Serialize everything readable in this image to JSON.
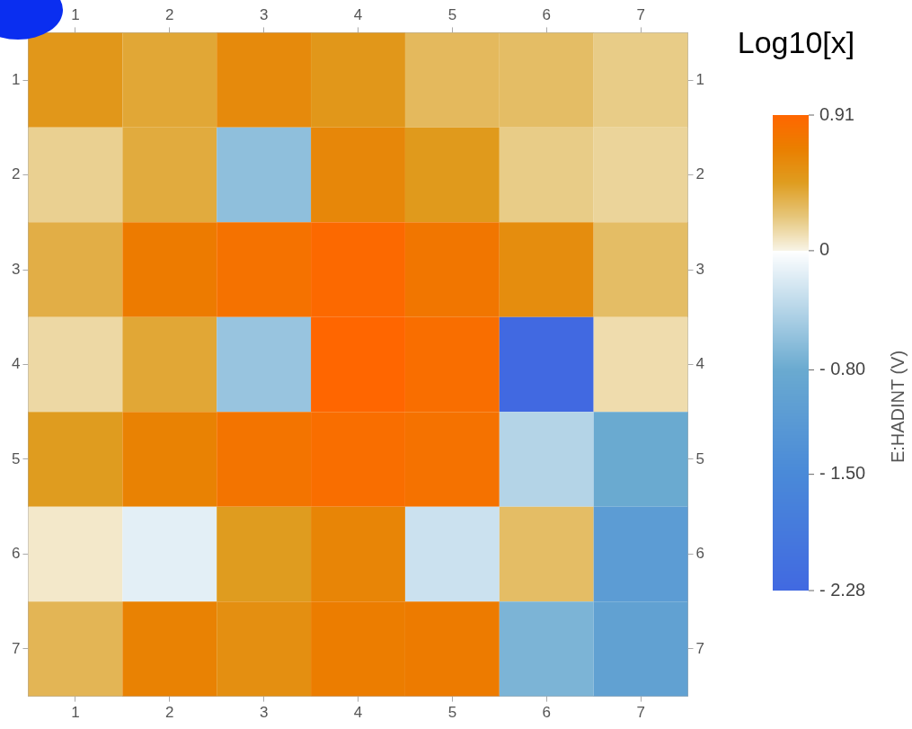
{
  "chart_data": {
    "type": "heatmap",
    "title": "Log10[x]",
    "clabel": "E:HADINT (V)",
    "categories": [
      "1",
      "2",
      "3",
      "4",
      "5",
      "6",
      "7"
    ],
    "y_categories": [
      "1",
      "2",
      "3",
      "4",
      "5",
      "6",
      "7"
    ],
    "cells": [
      [
        0.5,
        0.4,
        0.6,
        0.5,
        0.3,
        0.28,
        0.2
      ],
      [
        0.18,
        0.38,
        -0.6,
        0.62,
        0.48,
        0.2,
        0.16
      ],
      [
        0.36,
        0.72,
        0.8,
        0.88,
        0.76,
        0.58,
        0.28
      ],
      [
        0.14,
        0.4,
        -0.55,
        0.91,
        0.84,
        -2.28,
        0.12
      ],
      [
        0.46,
        0.66,
        0.78,
        0.84,
        0.8,
        -0.4,
        -0.8
      ],
      [
        0.06,
        -0.15,
        0.46,
        0.64,
        -0.28,
        0.28,
        -1.1
      ],
      [
        0.32,
        0.66,
        0.56,
        0.7,
        0.72,
        -0.7,
        -1.0
      ]
    ],
    "clim": [
      -2.28,
      0.91
    ],
    "cticks": [
      0.91,
      0,
      {
        "value": -0.8,
        "label": "- 0.80"
      },
      {
        "value": -1.5,
        "label": "- 1.50"
      },
      {
        "value": -2.28,
        "label": "- 2.28"
      }
    ],
    "grid": false
  }
}
